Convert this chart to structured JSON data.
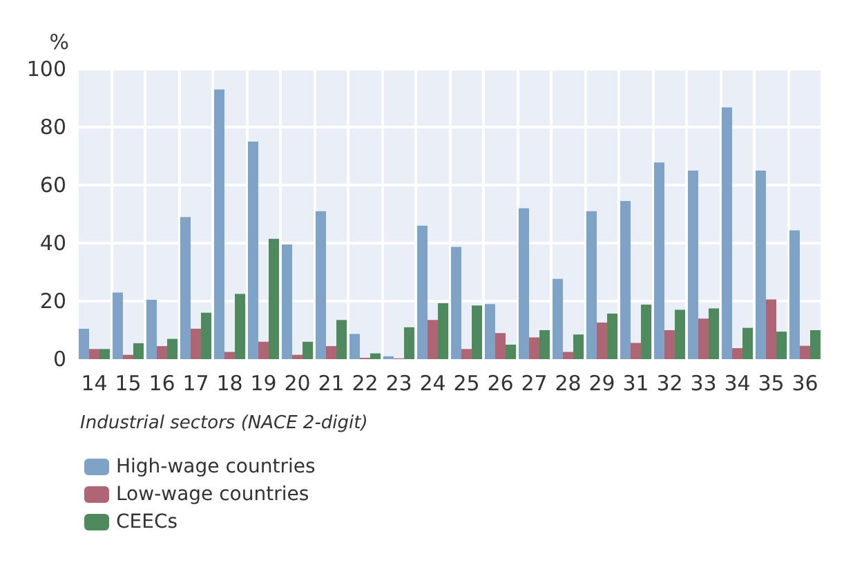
{
  "chart_data": {
    "type": "bar",
    "ylabel": "%",
    "xlabel": "Industrial sectors (NACE 2-digit)",
    "categories": [
      "14",
      "15",
      "16",
      "17",
      "18",
      "19",
      "20",
      "21",
      "22",
      "23",
      "24",
      "25",
      "26",
      "27",
      "28",
      "29",
      "31",
      "32",
      "33",
      "34",
      "35",
      "36"
    ],
    "series": [
      {
        "name": "High-wage countries",
        "color": "#7ea3c7",
        "values": [
          10.5,
          23,
          20.5,
          49,
          93,
          75,
          39.5,
          51,
          8.7,
          1,
          46,
          38.7,
          19,
          52,
          27.7,
          51,
          54.5,
          67.8,
          65,
          86.8,
          65,
          44.4
        ]
      },
      {
        "name": "Low-wage countries",
        "color": "#b06575",
        "values": [
          3.5,
          1.5,
          4.5,
          10.5,
          2.5,
          6,
          1.5,
          4.5,
          0.5,
          0.3,
          13.5,
          3.5,
          9,
          7.5,
          2.5,
          12.6,
          5.6,
          10,
          14,
          3.8,
          20.6,
          4.6
        ]
      },
      {
        "name": "CEECs",
        "color": "#4f8a5e",
        "values": [
          3.5,
          5.5,
          7,
          16,
          22.5,
          41.5,
          6,
          13.5,
          2,
          11,
          19.3,
          18.5,
          5,
          10,
          8.5,
          15.7,
          18.8,
          17,
          17.5,
          10.8,
          9.5,
          10
        ]
      }
    ],
    "ylim": [
      0,
      100
    ],
    "yticks": [
      0,
      20,
      40,
      60,
      80,
      100
    ],
    "grid": true,
    "legend": "bottom left"
  }
}
